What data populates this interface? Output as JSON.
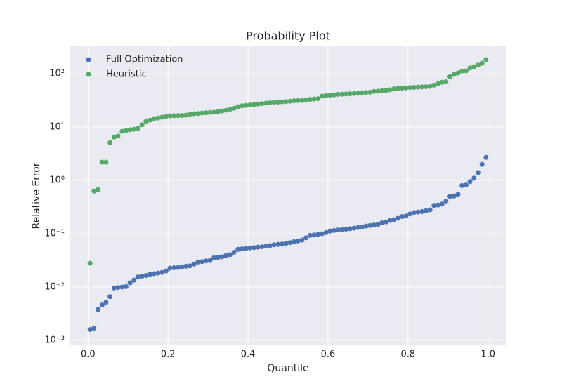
{
  "chart_data": {
    "type": "scatter",
    "title": "Probability Plot",
    "x_label": "Quantile",
    "y_label": "Relative Error",
    "log_y": true,
    "grid": true,
    "legend_position": "upper left",
    "xlim": [
      -0.0445,
      1.0445
    ],
    "ylim": [
      0.00081,
      326
    ],
    "xticks": [
      {
        "value": 0,
        "label": "0.0"
      },
      0.2,
      0.4,
      0.6,
      0.8,
      {
        "value": 1,
        "label": "1.0"
      }
    ],
    "yticks": [
      {
        "value": 0.001,
        "label": "10⁻³"
      },
      {
        "value": 0.01,
        "label": "10⁻²"
      },
      {
        "value": 0.1,
        "label": "10⁻¹"
      },
      {
        "value": 1,
        "label": "10⁰"
      },
      {
        "value": 10,
        "label": "10¹"
      },
      {
        "value": 100,
        "label": "10²"
      }
    ],
    "x": [
      0.005,
      0.015,
      0.025,
      0.035,
      0.045,
      0.055,
      0.065,
      0.075,
      0.085,
      0.095,
      0.105,
      0.115,
      0.125,
      0.135,
      0.145,
      0.155,
      0.165,
      0.175,
      0.185,
      0.195,
      0.205,
      0.215,
      0.225,
      0.235,
      0.245,
      0.255,
      0.265,
      0.275,
      0.285,
      0.295,
      0.305,
      0.315,
      0.325,
      0.335,
      0.345,
      0.355,
      0.365,
      0.375,
      0.385,
      0.395,
      0.405,
      0.415,
      0.425,
      0.435,
      0.445,
      0.455,
      0.465,
      0.475,
      0.485,
      0.495,
      0.505,
      0.515,
      0.525,
      0.535,
      0.545,
      0.555,
      0.565,
      0.575,
      0.585,
      0.595,
      0.605,
      0.615,
      0.625,
      0.635,
      0.645,
      0.655,
      0.665,
      0.675,
      0.685,
      0.695,
      0.705,
      0.715,
      0.725,
      0.735,
      0.745,
      0.755,
      0.765,
      0.775,
      0.785,
      0.795,
      0.805,
      0.815,
      0.825,
      0.835,
      0.845,
      0.855,
      0.865,
      0.875,
      0.885,
      0.895,
      0.905,
      0.915,
      0.925,
      0.935,
      0.945,
      0.955,
      0.965,
      0.975,
      0.985,
      0.995
    ],
    "series": [
      {
        "name": "Full Optimization",
        "color": "#4c72b0",
        "values": [
          0.0016,
          0.0017,
          0.0038,
          0.0046,
          0.0052,
          0.0066,
          0.0096,
          0.0098,
          0.01,
          0.0102,
          0.012,
          0.0135,
          0.0155,
          0.016,
          0.0165,
          0.0174,
          0.0178,
          0.0183,
          0.0188,
          0.02,
          0.0227,
          0.023,
          0.0233,
          0.0238,
          0.0246,
          0.025,
          0.027,
          0.0295,
          0.03,
          0.031,
          0.0315,
          0.0355,
          0.036,
          0.037,
          0.039,
          0.0405,
          0.045,
          0.051,
          0.052,
          0.053,
          0.054,
          0.055,
          0.056,
          0.057,
          0.059,
          0.06,
          0.062,
          0.063,
          0.064,
          0.066,
          0.068,
          0.071,
          0.073,
          0.076,
          0.084,
          0.093,
          0.095,
          0.097,
          0.1,
          0.105,
          0.112,
          0.115,
          0.118,
          0.12,
          0.122,
          0.124,
          0.127,
          0.131,
          0.134,
          0.139,
          0.143,
          0.146,
          0.15,
          0.16,
          0.166,
          0.177,
          0.183,
          0.195,
          0.21,
          0.215,
          0.235,
          0.25,
          0.255,
          0.26,
          0.27,
          0.28,
          0.34,
          0.345,
          0.36,
          0.41,
          0.5,
          0.51,
          0.55,
          0.8,
          0.82,
          0.95,
          1.1,
          1.4,
          2.0,
          2.7
        ]
      },
      {
        "name": "Heuristic",
        "color": "#55a868",
        "values": [
          0.028,
          0.63,
          0.67,
          2.2,
          2.2,
          5.1,
          6.5,
          6.8,
          8.3,
          8.6,
          8.9,
          9.1,
          9.4,
          11,
          12.7,
          13.5,
          14.4,
          14.8,
          15.3,
          15.8,
          16.2,
          16.3,
          16.4,
          16.5,
          16.7,
          17.4,
          17.7,
          17.9,
          18.3,
          18.5,
          18.8,
          19,
          19.4,
          20,
          20.6,
          21.5,
          22.5,
          24,
          25,
          25.5,
          26,
          26.5,
          27,
          27.5,
          28,
          28.5,
          29,
          29.3,
          29.6,
          30,
          30.5,
          31,
          31.3,
          31.6,
          32,
          33,
          33.5,
          34,
          38,
          39,
          39.5,
          40,
          41,
          41.3,
          41.6,
          42,
          42.5,
          43,
          44,
          44.5,
          45,
          46.5,
          47,
          48,
          48.5,
          50,
          52,
          53,
          53.5,
          54,
          55,
          55.5,
          56,
          56.5,
          57,
          58,
          61,
          65,
          69,
          71,
          88,
          97,
          103,
          112,
          113,
          128,
          135,
          145,
          157,
          183
        ]
      }
    ]
  }
}
